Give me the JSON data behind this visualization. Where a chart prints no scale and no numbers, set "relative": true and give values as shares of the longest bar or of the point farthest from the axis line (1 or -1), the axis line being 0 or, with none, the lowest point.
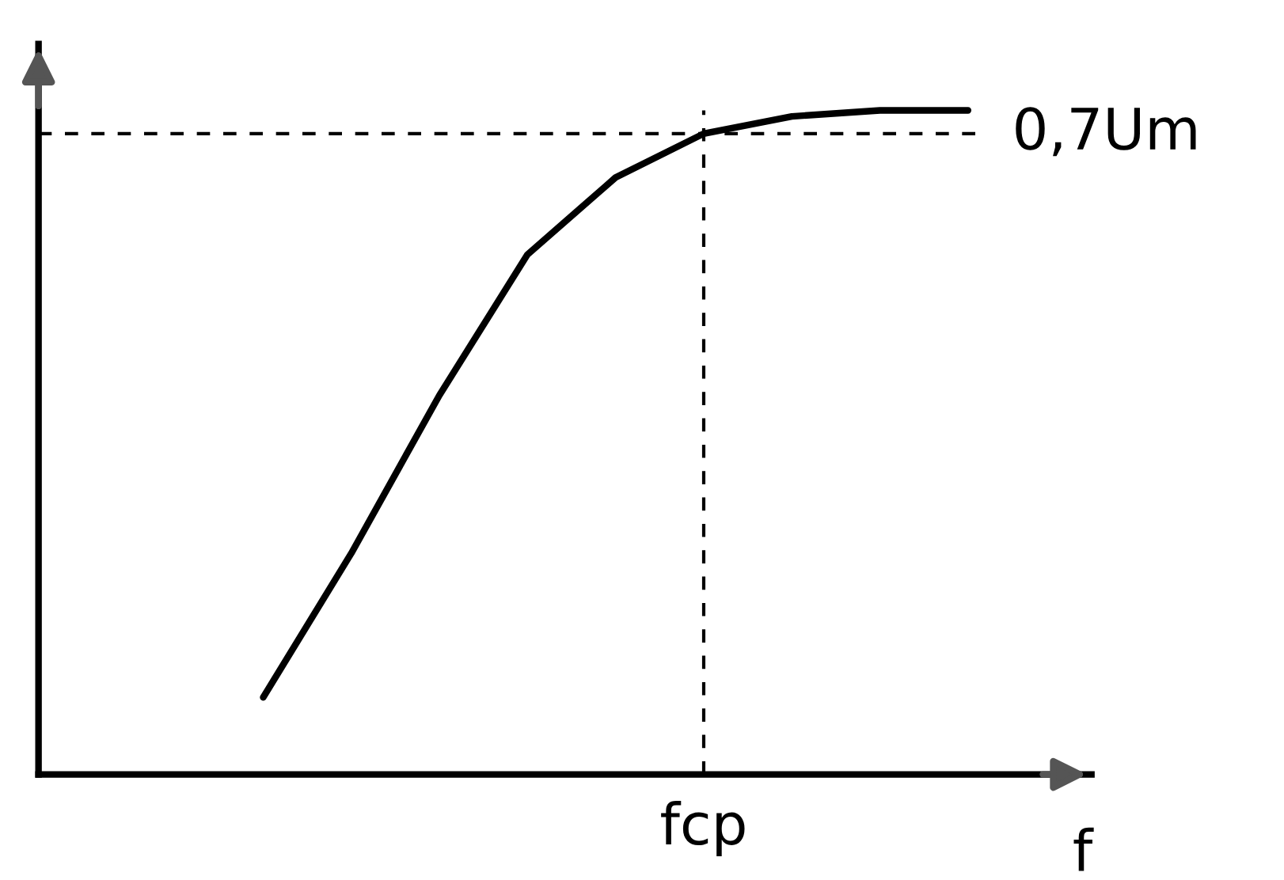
{
  "chart_data": {
    "type": "line",
    "relative": true,
    "xlabel": "f",
    "categories": [
      null,
      null,
      null,
      null,
      null,
      null,
      null,
      null,
      null
    ],
    "series": [
      {
        "color": "#000000",
        "values": [
          0.116,
          0.333,
          0.571,
          0.783,
          0.899,
          0.965,
          0.991,
          1,
          1
        ]
      }
    ],
    "ref_lines": [
      {
        "axis": "y",
        "value": 0.965,
        "label": "0,7Um",
        "color": "#000000",
        "line_style": "dashed"
      }
    ],
    "annotations": [
      "fcp"
    ],
    "marker": "none",
    "line_style": "solid"
  }
}
